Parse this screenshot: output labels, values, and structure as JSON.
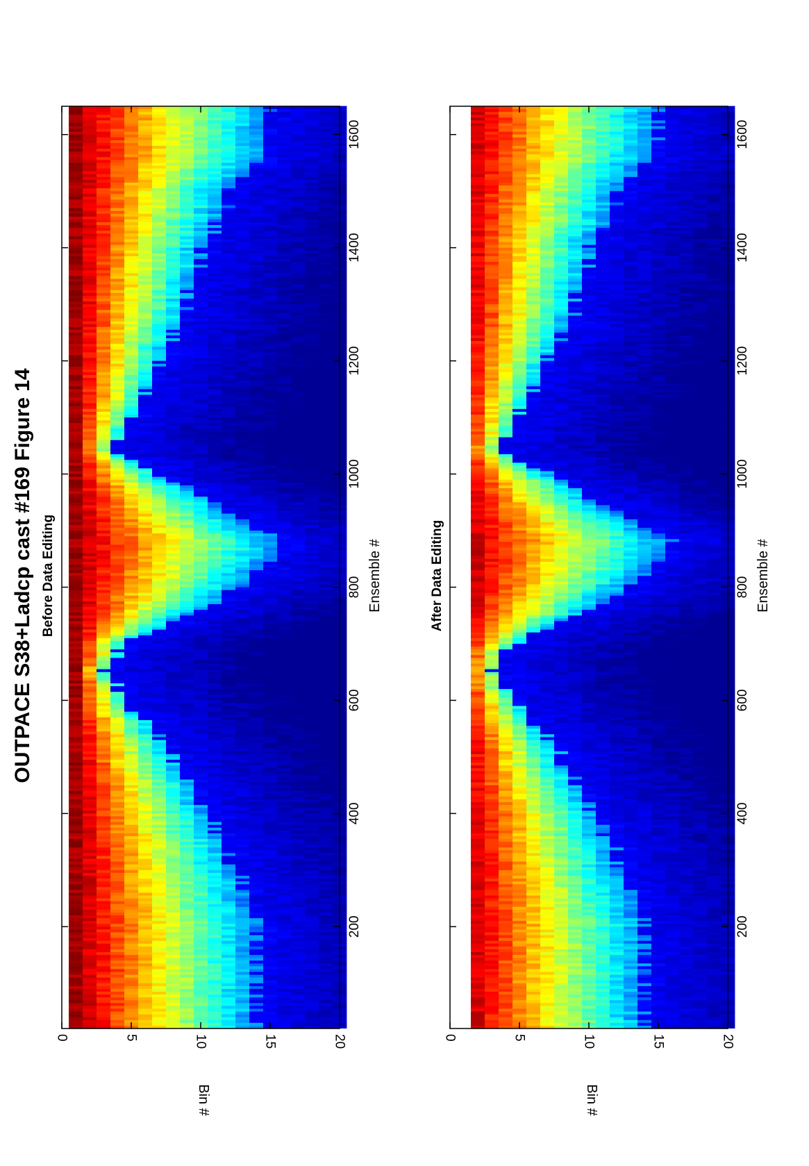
{
  "figure": {
    "title": "OUTPACE S38+Ladcp cast #169  Figure 14"
  },
  "chart_data": [
    {
      "type": "heatmap",
      "title": "Before Data Editing",
      "xlabel": "Ensemble #",
      "ylabel": "Bin #",
      "xlim": [
        20,
        1650
      ],
      "ylim": [
        0,
        20
      ],
      "x_ticks": [
        "200",
        "400",
        "600",
        "800",
        "1000",
        "1200",
        "1400",
        "1600"
      ],
      "y_ticks": [
        "0",
        "5",
        "10",
        "15",
        "20"
      ],
      "colormap": "jet",
      "grid": false,
      "profile": {
        "ensembles": [
          20,
          100,
          200,
          300,
          400,
          470,
          520,
          600,
          650,
          700,
          760,
          820,
          880,
          920,
          960,
          1000,
          1040,
          1100,
          1200,
          1300,
          1400,
          1460,
          1500,
          1560,
          1650
        ],
        "penetration_bins": [
          14,
          14,
          14,
          12.5,
          10.5,
          8.5,
          7.5,
          4.5,
          3,
          4.5,
          10,
          14,
          16,
          13,
          10,
          7,
          3.5,
          5,
          7,
          9,
          10,
          11.5,
          12,
          14.5,
          15
        ]
      }
    },
    {
      "type": "heatmap",
      "title": "After Data Editing",
      "xlabel": "Ensemble #",
      "ylabel": "Bin #",
      "xlim": [
        20,
        1650
      ],
      "ylim": [
        0,
        20
      ],
      "x_ticks": [
        "200",
        "400",
        "600",
        "800",
        "1000",
        "1200",
        "1400",
        "1600"
      ],
      "y_ticks": [
        "0",
        "5",
        "10",
        "15",
        "20"
      ],
      "colormap": "jet",
      "grid": false,
      "first_bin_removed": true,
      "profile": {
        "ensembles": [
          20,
          100,
          200,
          300,
          400,
          470,
          520,
          600,
          650,
          700,
          760,
          820,
          880,
          920,
          960,
          1000,
          1040,
          1100,
          1200,
          1300,
          1400,
          1460,
          1500,
          1560,
          1650
        ],
        "penetration_bins": [
          14,
          14,
          14,
          12.5,
          10.5,
          8.5,
          7.5,
          4.5,
          3,
          4.5,
          10,
          14,
          16,
          13,
          10,
          7,
          3.5,
          5,
          7,
          9,
          10,
          11.5,
          12,
          14.5,
          15
        ]
      }
    }
  ]
}
